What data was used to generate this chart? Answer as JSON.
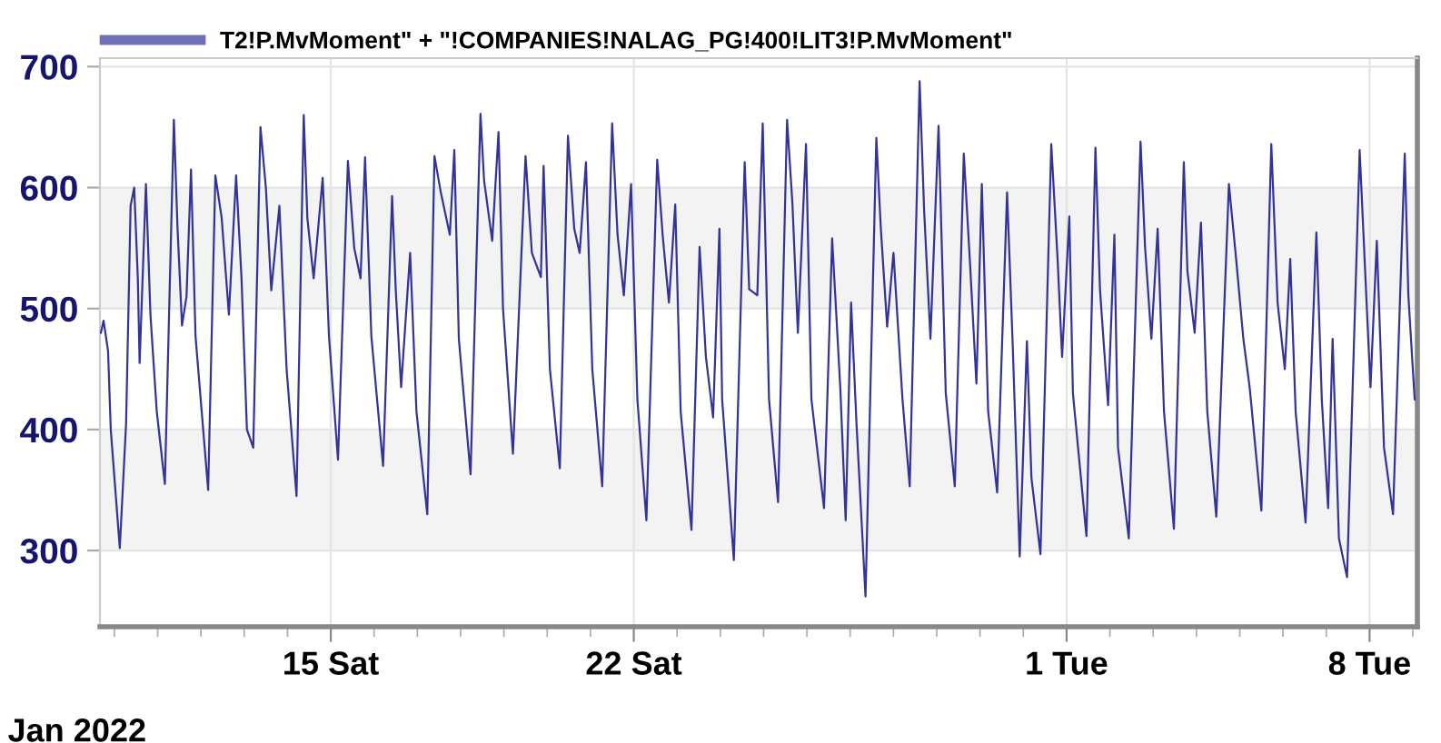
{
  "chart_data": {
    "type": "line",
    "x": [
      "2022-01-09T16:30",
      "2022-01-09T18:00",
      "2022-01-09T20:30",
      "2022-01-09T22:00",
      "2022-01-10T03:00",
      "2022-01-10T06:30",
      "2022-01-10T09:00",
      "2022-01-10T11:00",
      "2022-01-10T13:00",
      "2022-01-10T14:00",
      "2022-01-10T17:30",
      "2022-01-10T20:00",
      "2022-01-10T23:30",
      "2022-01-11T04:00",
      "2022-01-11T09:00",
      "2022-01-11T11:00",
      "2022-01-11T13:30",
      "2022-01-11T16:00",
      "2022-01-11T18:30",
      "2022-01-11T21:00",
      "2022-01-12T04:00",
      "2022-01-12T08:00",
      "2022-01-12T11:30",
      "2022-01-12T15:30",
      "2022-01-12T19:30",
      "2022-01-12T22:30",
      "2022-01-13T01:30",
      "2022-01-13T05:00",
      "2022-01-13T09:00",
      "2022-01-13T12:00",
      "2022-01-13T15:00",
      "2022-01-13T19:30",
      "2022-01-13T23:30",
      "2022-01-14T05:00",
      "2022-01-14T09:00",
      "2022-01-14T11:00",
      "2022-01-14T14:30",
      "2022-01-14T19:30",
      "2022-01-14T23:00",
      "2022-01-15T04:00",
      "2022-01-15T09:30",
      "2022-01-15T13:00",
      "2022-01-15T16:30",
      "2022-01-15T19:00",
      "2022-01-15T22:30",
      "2022-01-16T05:00",
      "2022-01-16T10:00",
      "2022-01-16T12:00",
      "2022-01-16T15:00",
      "2022-01-16T20:00",
      "2022-01-16T23:30",
      "2022-01-17T05:30",
      "2022-01-17T09:30",
      "2022-01-17T13:00",
      "2022-01-17T18:00",
      "2022-01-17T20:30",
      "2022-01-17T23:00",
      "2022-01-18T05:30",
      "2022-01-18T11:00",
      "2022-01-18T13:00",
      "2022-01-18T17:30",
      "2022-01-18T21:00",
      "2022-01-18T23:30",
      "2022-01-19T05:00",
      "2022-01-19T12:00",
      "2022-01-19T15:30",
      "2022-01-19T20:30",
      "2022-01-19T22:00",
      "2022-01-20T01:30",
      "2022-01-20T07:00",
      "2022-01-20T11:30",
      "2022-01-20T15:00",
      "2022-01-20T18:00",
      "2022-01-20T21:30",
      "2022-01-21T01:00",
      "2022-01-21T06:30",
      "2022-01-21T12:00",
      "2022-01-21T15:00",
      "2022-01-21T18:30",
      "2022-01-21T22:30",
      "2022-01-22T02:00",
      "2022-01-22T07:00",
      "2022-01-22T13:00",
      "2022-01-22T16:00",
      "2022-01-22T19:30",
      "2022-01-22T23:00",
      "2022-01-23T02:00",
      "2022-01-23T08:00",
      "2022-01-23T12:30",
      "2022-01-23T16:00",
      "2022-01-23T20:00",
      "2022-01-23T23:30",
      "2022-01-24T01:00",
      "2022-01-24T07:30",
      "2022-01-24T13:30",
      "2022-01-24T16:00",
      "2022-01-24T20:30",
      "2022-01-24T23:30",
      "2022-01-25T03:00",
      "2022-01-25T08:00",
      "2022-01-25T13:00",
      "2022-01-25T16:00",
      "2022-01-25T19:00",
      "2022-01-25T23:30",
      "2022-01-26T02:30",
      "2022-01-26T09:30",
      "2022-01-26T14:00",
      "2022-01-26T18:30",
      "2022-01-26T21:30",
      "2022-01-27T00:30",
      "2022-01-27T03:30",
      "2022-01-27T08:30",
      "2022-01-27T14:30",
      "2022-01-27T17:00",
      "2022-01-27T20:30",
      "2022-01-28T00:00",
      "2022-01-28T05:00",
      "2022-01-28T09:00",
      "2022-01-28T14:30",
      "2022-01-28T17:00",
      "2022-01-28T20:30",
      "2022-01-29T01:00",
      "2022-01-29T05:00",
      "2022-01-29T10:00",
      "2022-01-29T15:00",
      "2022-01-29T18:30",
      "2022-01-29T22:00",
      "2022-01-30T01:00",
      "2022-01-30T04:30",
      "2022-01-30T09:30",
      "2022-01-30T15:00",
      "2022-01-30T18:00",
      "2022-01-30T22:00",
      "2022-01-31T02:00",
      "2022-01-31T04:30",
      "2022-01-31T09:30",
      "2022-01-31T15:30",
      "2022-01-31T19:00",
      "2022-01-31T21:30",
      "2022-02-01T01:30",
      "2022-02-01T03:30",
      "2022-02-01T11:00",
      "2022-02-01T16:00",
      "2022-02-01T18:30",
      "2022-02-01T23:00",
      "2022-02-02T02:30",
      "2022-02-02T04:30",
      "2022-02-02T10:30",
      "2022-02-02T17:00",
      "2022-02-02T19:30",
      "2022-02-02T23:00",
      "2022-02-03T02:30",
      "2022-02-03T06:00",
      "2022-02-03T11:30",
      "2022-02-03T17:00",
      "2022-02-03T19:00",
      "2022-02-03T23:00",
      "2022-02-04T02:30",
      "2022-02-04T06:00",
      "2022-02-04T11:00",
      "2022-02-04T18:00",
      "2022-02-04T22:00",
      "2022-02-05T02:00",
      "2022-02-05T05:30",
      "2022-02-05T12:00",
      "2022-02-05T17:30",
      "2022-02-05T21:00",
      "2022-02-06T01:00",
      "2022-02-06T04:00",
      "2022-02-06T07:00",
      "2022-02-06T12:30",
      "2022-02-06T18:30",
      "2022-02-06T21:30",
      "2022-02-07T01:00",
      "2022-02-07T03:30",
      "2022-02-07T07:00",
      "2022-02-07T11:30",
      "2022-02-07T18:30",
      "2022-02-07T22:00",
      "2022-02-08T00:30",
      "2022-02-08T04:00",
      "2022-02-08T08:00",
      "2022-02-08T13:00",
      "2022-02-08T19:30",
      "2022-02-08T21:30",
      "2022-02-09T01:00"
    ],
    "series": [
      {
        "name": "T2!P.MvMoment\" + \"!COMPANIES!NALAG_PG!400!LIT3!P.MvMoment\"",
        "color": "#33339a",
        "values": [
          480,
          490,
          465,
          400,
          302,
          405,
          585,
          600,
          525,
          455,
          603,
          495,
          415,
          355,
          656,
          567,
          486,
          510,
          615,
          477,
          350,
          610,
          575,
          495,
          610,
          525,
          400,
          385,
          650,
          600,
          515,
          585,
          450,
          345,
          660,
          575,
          525,
          608,
          477,
          375,
          622,
          550,
          525,
          625,
          477,
          370,
          593,
          516,
          435,
          546,
          415,
          330,
          626,
          596,
          561,
          631,
          475,
          363,
          661,
          606,
          556,
          646,
          500,
          380,
          626,
          546,
          526,
          618,
          450,
          368,
          643,
          566,
          546,
          621,
          450,
          353,
          653,
          561,
          511,
          603,
          425,
          325,
          623,
          561,
          505,
          586,
          415,
          317,
          551,
          460,
          410,
          566,
          425,
          292,
          621,
          516,
          511,
          653,
          425,
          340,
          656,
          586,
          480,
          636,
          425,
          335,
          558,
          435,
          325,
          505,
          405,
          262,
          641,
          566,
          485,
          546,
          425,
          353,
          688,
          581,
          475,
          651,
          430,
          353,
          628,
          536,
          438,
          603,
          415,
          348,
          596,
          475,
          295,
          473,
          360,
          297,
          636,
          541,
          460,
          576,
          430,
          312,
          633,
          516,
          420,
          561,
          385,
          310,
          638,
          551,
          475,
          566,
          415,
          318,
          621,
          531,
          480,
          571,
          415,
          328,
          603,
          541,
          475,
          435,
          333,
          636,
          505,
          450,
          541,
          415,
          323,
          563,
          425,
          335,
          475,
          310,
          278,
          631,
          516,
          435,
          556,
          385,
          330,
          628,
          511,
          425
        ]
      }
    ],
    "xlabel": "Jan 2022",
    "xlim": [
      "2022-01-09T16:00",
      "2022-02-09T02:30"
    ],
    "xticks": [
      {
        "value": "2022-01-15",
        "label": "15 Sat"
      },
      {
        "value": "2022-01-22",
        "label": "22 Sat"
      },
      {
        "value": "2022-02-01",
        "label": "1 Tue"
      },
      {
        "value": "2022-02-08",
        "label": "8 Tue"
      }
    ],
    "ylim": [
      237,
      707
    ],
    "yticks": [
      300,
      400,
      500,
      600,
      700
    ],
    "bands": [
      {
        "axis": "y",
        "from": 300,
        "to": 400,
        "color": "#f3f3f3"
      },
      {
        "axis": "y",
        "from": 500,
        "to": 600,
        "color": "#f3f3f3"
      }
    ],
    "grid": true,
    "legend": "top left",
    "line_style": "solid",
    "marker": "none"
  }
}
